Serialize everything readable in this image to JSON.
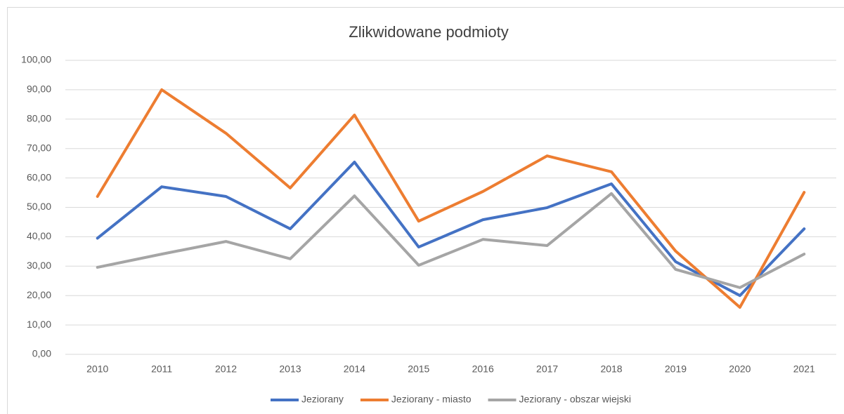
{
  "chart_data": {
    "type": "line",
    "title": "Zlikwidowane podmioty",
    "categories": [
      "2010",
      "2011",
      "2012",
      "2013",
      "2014",
      "2015",
      "2016",
      "2017",
      "2018",
      "2019",
      "2020",
      "2021"
    ],
    "series": [
      {
        "name": "Jeziorany",
        "color": "#4472c4",
        "values": [
          39.5,
          57.0,
          53.7,
          42.7,
          65.4,
          36.5,
          45.8,
          49.9,
          58.0,
          31.5,
          20.0,
          42.7
        ]
      },
      {
        "name": "Jeziorany - miasto",
        "color": "#ed7d31",
        "values": [
          53.7,
          90.0,
          75.2,
          56.6,
          81.4,
          45.3,
          55.4,
          67.5,
          62.1,
          35.1,
          16.0,
          55.1
        ]
      },
      {
        "name": "Jeziorany - obszar wiejski",
        "color": "#a5a5a5",
        "values": [
          29.6,
          34.1,
          38.4,
          32.5,
          53.9,
          30.3,
          39.1,
          37.0,
          54.7,
          28.9,
          22.7,
          34.1
        ]
      }
    ],
    "ylim": [
      0,
      100
    ],
    "yticks": [
      {
        "value": 0,
        "label": "0,00"
      },
      {
        "value": 10,
        "label": "10,00"
      },
      {
        "value": 20,
        "label": "20,00"
      },
      {
        "value": 30,
        "label": "30,00"
      },
      {
        "value": 40,
        "label": "40,00"
      },
      {
        "value": 50,
        "label": "50,00"
      },
      {
        "value": 60,
        "label": "60,00"
      },
      {
        "value": 70,
        "label": "70,00"
      },
      {
        "value": 80,
        "label": "80,00"
      },
      {
        "value": 90,
        "label": "90,00"
      },
      {
        "value": 100,
        "label": "100,00"
      }
    ],
    "grid": true,
    "legend": "bottom"
  }
}
